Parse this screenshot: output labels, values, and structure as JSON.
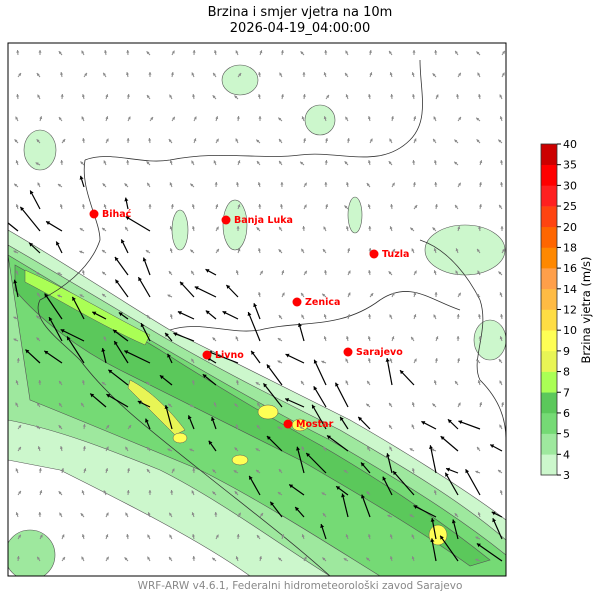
{
  "title": "Brzina i smjer vjetra na 10m",
  "subtitle": "2026-04-19_04:00:00",
  "footer": "WRF-ARW v4.6.1, Federalni hidrometeorološki zavod Sarajevo",
  "colorbar": {
    "label": "Brzina vjetra (m/s)",
    "levels": [
      "3",
      "4",
      "5",
      "6",
      "7",
      "8",
      "9",
      "10",
      "12",
      "14",
      "16",
      "18",
      "20",
      "25",
      "30",
      "35",
      "40"
    ],
    "colors": [
      "#ccf7cc",
      "#9ee89e",
      "#75da75",
      "#5bc85b",
      "#aaff55",
      "#e8f555",
      "#ffff55",
      "#ffdd44",
      "#ffbb44",
      "#ff9f4a",
      "#ff8800",
      "#ff6600",
      "#ff4410",
      "#ff2020",
      "#ff0000",
      "#cc0000"
    ]
  },
  "cities": [
    {
      "name": "Bihać",
      "lon_lat_hint": "",
      "label": "Bihać"
    },
    {
      "name": "Banja Luka",
      "label": "Banja Luka"
    },
    {
      "name": "Tuzla",
      "label": "Tuzla"
    },
    {
      "name": "Zenica",
      "label": "Zenica"
    },
    {
      "name": "Sarajevo",
      "label": "Sarajevo"
    },
    {
      "name": "Livno",
      "label": "Livno"
    },
    {
      "name": "Mostar",
      "label": "Mostar"
    }
  ],
  "city_color": "#ff0000"
}
